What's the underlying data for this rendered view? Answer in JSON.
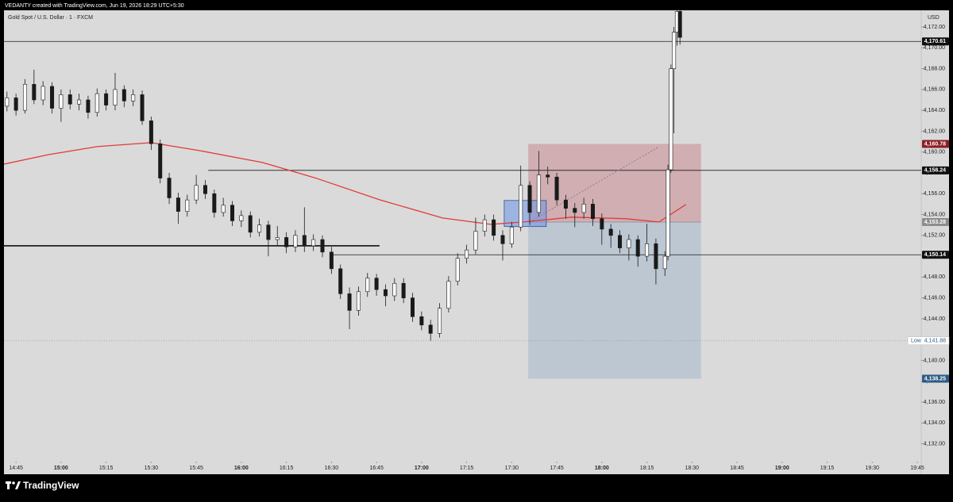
{
  "chart_data": {
    "type": "candlestick",
    "header": "VEDANTY created with TradingView.com, Jun 19, 2026 18:29 UTC+5:30",
    "title": "Gold Spot / U.S. Dollar · 1 · FXCM",
    "currency": "USD",
    "brand": "TradingView",
    "xlim": [
      881,
      1188
    ],
    "ylim": [
      4130.6,
      4173.6
    ],
    "xticks": [
      {
        "value": 885,
        "label": "14:45"
      },
      {
        "value": 900,
        "label": "15:00"
      },
      {
        "value": 915,
        "label": "15:15"
      },
      {
        "value": 930,
        "label": "15:30"
      },
      {
        "value": 945,
        "label": "15:45"
      },
      {
        "value": 960,
        "label": "16:00"
      },
      {
        "value": 975,
        "label": "16:15"
      },
      {
        "value": 990,
        "label": "16:30"
      },
      {
        "value": 1005,
        "label": "16:45"
      },
      {
        "value": 1020,
        "label": "17:00"
      },
      {
        "value": 1035,
        "label": "17:15"
      },
      {
        "value": 1050,
        "label": "17:30"
      },
      {
        "value": 1065,
        "label": "17:45"
      },
      {
        "value": 1080,
        "label": "18:00"
      },
      {
        "value": 1095,
        "label": "18:15"
      },
      {
        "value": 1110,
        "label": "18:30"
      },
      {
        "value": 1125,
        "label": "18:45"
      },
      {
        "value": 1140,
        "label": "19:00"
      },
      {
        "value": 1155,
        "label": "19:15"
      },
      {
        "value": 1170,
        "label": "19:30"
      },
      {
        "value": 1185,
        "label": "19:45"
      }
    ],
    "yticks": [
      {
        "value": 4132,
        "label": "4,132.00"
      },
      {
        "value": 4134,
        "label": "4,134.00"
      },
      {
        "value": 4136,
        "label": "4,136.00"
      },
      {
        "value": 4138,
        "label": "4,138.00"
      },
      {
        "value": 4140,
        "label": "4,140.00"
      },
      {
        "value": 4142,
        "label": "4,142.00"
      },
      {
        "value": 4144,
        "label": "4,144.00"
      },
      {
        "value": 4146,
        "label": "4,146.00"
      },
      {
        "value": 4148,
        "label": "4,148.00"
      },
      {
        "value": 4150,
        "label": "4,150.00"
      },
      {
        "value": 4152,
        "label": "4,152.00"
      },
      {
        "value": 4154,
        "label": "4,154.00"
      },
      {
        "value": 4156,
        "label": "4,156.00"
      },
      {
        "value": 4158,
        "label": "4,158.00"
      },
      {
        "value": 4160,
        "label": "4,160.00"
      },
      {
        "value": 4162,
        "label": "4,162.00"
      },
      {
        "value": 4164,
        "label": "4,164.00"
      },
      {
        "value": 4166,
        "label": "4,166.00"
      },
      {
        "value": 4168,
        "label": "4,168.00"
      },
      {
        "value": 4170,
        "label": "4,170.00"
      },
      {
        "value": 4172,
        "label": "4,172.00"
      }
    ],
    "x": [
      882,
      885,
      888,
      891,
      894,
      897,
      900,
      903,
      906,
      909,
      912,
      915,
      918,
      921,
      924,
      927,
      930,
      933,
      936,
      939,
      942,
      945,
      948,
      951,
      954,
      957,
      960,
      963,
      966,
      969,
      972,
      975,
      978,
      981,
      984,
      987,
      990,
      993,
      996,
      999,
      1002,
      1005,
      1008,
      1011,
      1014,
      1017,
      1020,
      1023,
      1026,
      1029,
      1032,
      1035,
      1038,
      1041,
      1044,
      1047,
      1050,
      1053,
      1056,
      1059,
      1062,
      1065,
      1068,
      1071,
      1074,
      1077,
      1080,
      1083,
      1086,
      1089,
      1092,
      1095,
      1098,
      1101,
      1102,
      1103,
      1104,
      1105,
      1106
    ],
    "open": [
      4164.4,
      4165.2,
      4164.0,
      4166.5,
      4165.0,
      4166.3,
      4164.2,
      4165.5,
      4164.6,
      4165.0,
      4163.8,
      4165.6,
      4164.5,
      4166.0,
      4164.9,
      4165.5,
      4163.0,
      4160.8,
      4157.5,
      4155.6,
      4154.3,
      4155.4,
      4156.8,
      4156.0,
      4154.2,
      4154.9,
      4153.4,
      4153.9,
      4152.3,
      4153.0,
      4151.6,
      4151.8,
      4150.9,
      4152.0,
      4151.0,
      4151.6,
      4150.4,
      4148.8,
      4146.4,
      4144.8,
      4146.6,
      4147.9,
      4146.8,
      4146.2,
      4147.4,
      4146.0,
      4144.2,
      4143.4,
      4142.6,
      4145.0,
      4147.6,
      4149.8,
      4150.6,
      4152.4,
      4153.5,
      4152.0,
      4151.2,
      4152.8,
      4156.8,
      4154.2,
      4157.8,
      4157.6,
      4155.4,
      4154.6,
      4154.2,
      4155.0,
      4153.6,
      4152.6,
      4152.0,
      4150.8,
      4151.6,
      4150.0,
      4151.2,
      4148.8,
      4150.0,
      4158.3,
      4168.0,
      4171.5,
      4173.5
    ],
    "high": [
      4165.8,
      4165.6,
      4167.0,
      4167.9,
      4166.8,
      4166.7,
      4166.0,
      4166.0,
      4165.6,
      4165.4,
      4166.1,
      4166.0,
      4167.6,
      4166.4,
      4166.0,
      4165.9,
      4163.4,
      4161.2,
      4158.0,
      4156.1,
      4155.9,
      4157.8,
      4157.3,
      4156.4,
      4155.6,
      4155.3,
      4154.4,
      4154.3,
      4153.6,
      4153.4,
      4152.9,
      4152.3,
      4152.5,
      4154.7,
      4152.1,
      4152.0,
      4150.9,
      4149.2,
      4147.0,
      4147.1,
      4148.4,
      4148.3,
      4147.3,
      4147.9,
      4147.9,
      4146.5,
      4144.7,
      4143.9,
      4145.5,
      4148.1,
      4150.3,
      4151.1,
      4153.7,
      4154.0,
      4154.0,
      4152.5,
      4153.3,
      4158.7,
      4157.2,
      4160.1,
      4158.6,
      4158.0,
      4155.9,
      4155.1,
      4155.6,
      4155.5,
      4154.1,
      4153.1,
      4152.5,
      4152.1,
      4152.0,
      4153.1,
      4151.7,
      4150.5,
      4158.8,
      4168.4,
      4172.0,
      4174.2,
      4173.9
    ],
    "low": [
      4163.9,
      4163.5,
      4163.7,
      4164.6,
      4164.5,
      4163.7,
      4162.9,
      4164.1,
      4164.0,
      4163.2,
      4163.4,
      4164.0,
      4164.0,
      4164.3,
      4164.4,
      4162.6,
      4160.2,
      4157.0,
      4155.0,
      4153.1,
      4153.8,
      4155.0,
      4155.5,
      4153.7,
      4153.8,
      4152.9,
      4152.8,
      4151.8,
      4151.9,
      4150.0,
      4151.0,
      4150.3,
      4150.4,
      4150.4,
      4150.5,
      4149.9,
      4148.3,
      4145.9,
      4143.0,
      4144.3,
      4146.1,
      4146.2,
      4145.2,
      4145.7,
      4145.5,
      4143.7,
      4142.9,
      4141.88,
      4142.2,
      4144.6,
      4147.2,
      4149.3,
      4150.2,
      4151.9,
      4151.5,
      4149.6,
      4150.8,
      4152.4,
      4153.0,
      4153.8,
      4156.9,
      4154.9,
      4153.6,
      4152.8,
      4153.6,
      4152.9,
      4151.1,
      4150.8,
      4150.3,
      4149.6,
      4149.0,
      4149.5,
      4147.3,
      4148.1,
      4149.6,
      4158.0,
      4161.8,
      4170.2,
      4170.3
    ],
    "close": [
      4165.2,
      4164.0,
      4166.5,
      4165.0,
      4166.3,
      4164.2,
      4165.5,
      4164.6,
      4165.0,
      4163.8,
      4165.6,
      4164.5,
      4166.0,
      4164.9,
      4165.5,
      4163.0,
      4160.8,
      4157.5,
      4155.6,
      4154.3,
      4155.4,
      4156.8,
      4156.0,
      4154.2,
      4154.9,
      4153.4,
      4153.9,
      4152.3,
      4153.0,
      4151.6,
      4151.8,
      4150.9,
      4152.0,
      4151.0,
      4151.6,
      4150.4,
      4148.8,
      4146.4,
      4144.8,
      4146.6,
      4147.9,
      4146.8,
      4146.2,
      4147.4,
      4146.0,
      4144.2,
      4143.4,
      4142.6,
      4145.0,
      4147.6,
      4149.8,
      4150.6,
      4152.4,
      4153.5,
      4152.0,
      4151.2,
      4152.8,
      4156.8,
      4154.2,
      4157.8,
      4157.6,
      4155.4,
      4154.6,
      4154.2,
      4155.0,
      4153.6,
      4152.6,
      4152.0,
      4150.8,
      4151.6,
      4150.0,
      4151.2,
      4148.8,
      4150.0,
      4158.3,
      4168.0,
      4171.5,
      4173.5,
      4171.0
    ],
    "up_color": "#ffffff",
    "down_color": "#1a1a1a",
    "ma": {
      "color": "#e23a3a",
      "x": [
        881,
        896,
        912,
        930,
        946,
        967,
        985,
        1006,
        1027,
        1043,
        1054,
        1070,
        1088,
        1099,
        1108
      ],
      "values": [
        4158.84,
        4159.76,
        4160.52,
        4160.9,
        4160.14,
        4159.0,
        4157.48,
        4155.42,
        4153.67,
        4153.06,
        4153.29,
        4153.75,
        4153.6,
        4153.29,
        4154.97
      ]
    },
    "levels": [
      {
        "value": 4170.61,
        "label": "4,170.61",
        "from": 881
      },
      {
        "value": 4158.24,
        "label": "4,158.24",
        "from": 949
      },
      {
        "value": 4150.14,
        "label": "4,150.14",
        "from": 990
      }
    ],
    "support": {
      "value": 4151.0,
      "from": 881,
      "to": 1006
    },
    "low_marker": {
      "text": "Low",
      "value": 4141.88,
      "label": "4,141.88"
    },
    "position": {
      "from": 1055.5,
      "to": 1113,
      "target": {
        "value": 4160.78,
        "label": "4,160.78"
      },
      "entry": {
        "value": 4153.28,
        "label": "4,153.28"
      },
      "stop": {
        "value": 4138.25,
        "label": "4,138.25"
      }
    },
    "zone": {
      "from": 1047.5,
      "to": 1061.5,
      "top": 4155.35,
      "bottom": 4152.85
    },
    "trend_line": {
      "x": [
        1056,
        1099
      ],
      "y": [
        4153.3,
        4160.5
      ]
    }
  }
}
